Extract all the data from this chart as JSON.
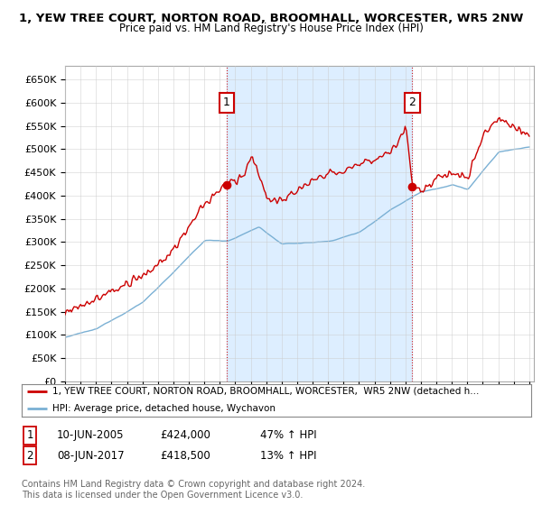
{
  "title": "1, YEW TREE COURT, NORTON ROAD, BROOMHALL, WORCESTER, WR5 2NW",
  "subtitle": "Price paid vs. HM Land Registry's House Price Index (HPI)",
  "ylabel_ticks": [
    "£0",
    "£50K",
    "£100K",
    "£150K",
    "£200K",
    "£250K",
    "£300K",
    "£350K",
    "£400K",
    "£450K",
    "£500K",
    "£550K",
    "£600K",
    "£650K"
  ],
  "ytick_vals": [
    0,
    50000,
    100000,
    150000,
    200000,
    250000,
    300000,
    350000,
    400000,
    450000,
    500000,
    550000,
    600000,
    650000
  ],
  "ylim": [
    0,
    680000
  ],
  "sale1_date": 2005.44,
  "sale1_price": 424000,
  "sale2_date": 2017.44,
  "sale2_price": 418500,
  "sale_color": "#cc0000",
  "hpi_color": "#7ab0d4",
  "shade_color": "#ddeeff",
  "dashed_line_color": "#cc0000",
  "legend1": "1, YEW TREE COURT, NORTON ROAD, BROOMHALL, WORCESTER,  WR5 2NW (detached h...",
  "legend2": "HPI: Average price, detached house, Wychavon",
  "footer1": "Contains HM Land Registry data © Crown copyright and database right 2024.",
  "footer2": "This data is licensed under the Open Government Licence v3.0.",
  "table_row1": [
    "1",
    "10-JUN-2005",
    "£424,000",
    "47% ↑ HPI"
  ],
  "table_row2": [
    "2",
    "08-JUN-2017",
    "£418,500",
    "13% ↑ HPI"
  ],
  "background_color": "#ffffff",
  "grid_color": "#cccccc"
}
